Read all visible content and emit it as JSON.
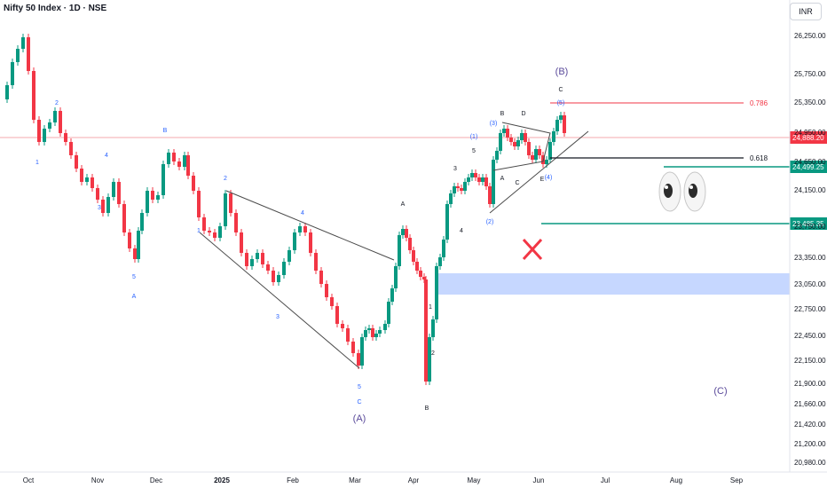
{
  "title": "Nifty 50 Index · 1D · NSE",
  "currency": "INR",
  "chart_data": {
    "type": "candlestick",
    "y_axis": {
      "ticks": [
        "26,250.00",
        "25,750.00",
        "25,350.00",
        "24,950.00",
        "24,650.00",
        "24,150.00",
        "23,750.00",
        "23,350.00",
        "23,050.00",
        "22,750.00",
        "22,450.00",
        "22,150.00",
        "21,900.00",
        "21,660.00",
        "21,420.00",
        "21,200.00",
        "20,980.00"
      ],
      "scale": "log"
    },
    "x_axis": {
      "ticks": [
        "Oct",
        "Nov",
        "Dec",
        "2025",
        "Feb",
        "Mar",
        "Apr",
        "May",
        "Jun",
        "Jul",
        "Aug",
        "Sep"
      ]
    },
    "price_labels": [
      {
        "value": "24,888.20",
        "color": "#f23645"
      },
      {
        "value": "24,499.25",
        "color": "#089981"
      },
      {
        "value": "23,485.35",
        "color": "#089981"
      }
    ],
    "fib_levels": [
      {
        "label": "0.786",
        "color": "#f23645"
      },
      {
        "label": "0.618",
        "color": "#131722"
      }
    ],
    "wave_labels": [
      "1",
      "2",
      "3",
      "4",
      "5",
      "A",
      "B",
      "1",
      "2",
      "3",
      "4",
      "5",
      "C",
      "(A)",
      "A",
      "B",
      "1",
      "2",
      "3",
      "4",
      "5",
      "(1)",
      "(2)",
      "(3)",
      "(4)",
      "(5)",
      "A",
      "B",
      "C",
      "D",
      "E",
      "C",
      "(B)",
      "(C)"
    ],
    "colors": {
      "up": "#089981",
      "down": "#f23645",
      "wave_blue": "#2962ff",
      "wave_purple": "#5b4b9b",
      "zone": "#aec6ff"
    }
  }
}
